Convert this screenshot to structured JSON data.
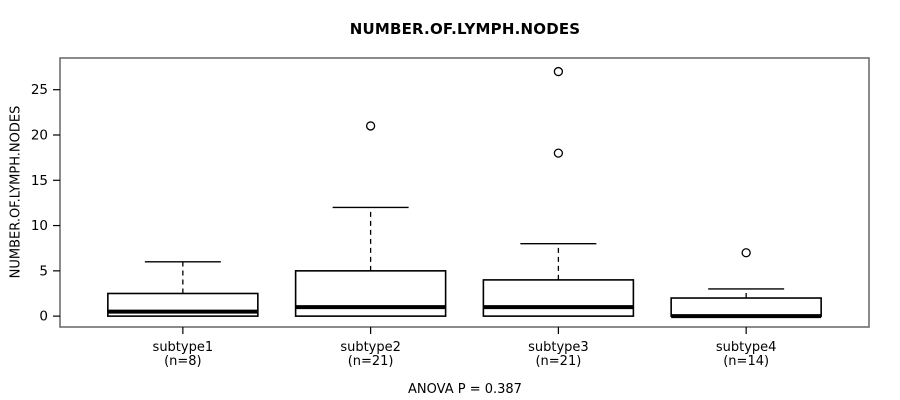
{
  "chart_data": {
    "type": "boxplot",
    "title": "NUMBER.OF.LYMPH.NODES",
    "ylabel": "NUMBER.OF.LYMPH.NODES",
    "footer": "ANOVA P = 0.387",
    "ylim": [
      -1.2,
      28.5
    ],
    "yticks": [
      0,
      5,
      10,
      15,
      20,
      25
    ],
    "grid": "off",
    "groups": [
      {
        "label": "subtype1",
        "sublabel": "(n=8)",
        "n": 8,
        "whisker_low": 0,
        "q1": 0,
        "median": 0.5,
        "q3": 2.5,
        "whisker_high": 6,
        "outliers": []
      },
      {
        "label": "subtype2",
        "sublabel": "(n=21)",
        "n": 21,
        "whisker_low": 0,
        "q1": 0,
        "median": 1,
        "q3": 5,
        "whisker_high": 12,
        "outliers": [
          21
        ]
      },
      {
        "label": "subtype3",
        "sublabel": "(n=21)",
        "n": 21,
        "whisker_low": 0,
        "q1": 0,
        "median": 1,
        "q3": 4,
        "whisker_high": 8,
        "outliers": [
          18,
          27
        ]
      },
      {
        "label": "subtype4",
        "sublabel": "(n=14)",
        "n": 14,
        "whisker_low": 0,
        "q1": 0,
        "median": 0,
        "q3": 2,
        "whisker_high": 3,
        "outliers": [
          7
        ]
      }
    ],
    "colors": {
      "line": "#000000",
      "frame": "#6e6e6e",
      "background": "#ffffff"
    }
  }
}
